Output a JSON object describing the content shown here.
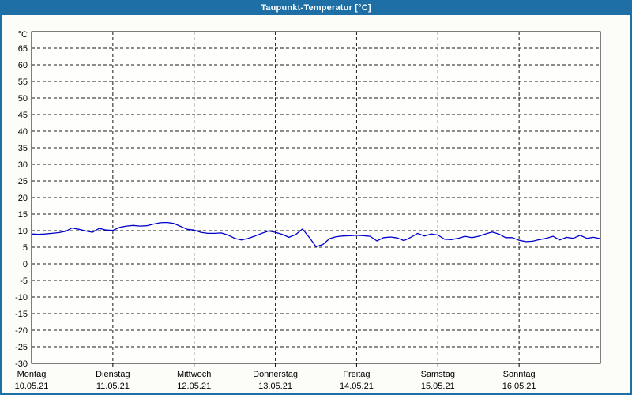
{
  "window": {
    "title": "Taupunkt-Temperatur [°C]"
  },
  "colors": {
    "frame": "#1d6fa5",
    "title_text": "#ffffff",
    "page_bg": "#fcfcf9",
    "plot_bg": "#fefefc",
    "grid": "#1a1a1a",
    "axis": "#000000",
    "label_text": "#000000",
    "line": "#0000cc"
  },
  "chart_data": {
    "type": "line",
    "title": "Taupunkt-Temperatur [°C]",
    "y_unit": "°C",
    "ylim": [
      -30,
      70
    ],
    "y_tick_step": 5,
    "y_labeled_range": [
      -30,
      65
    ],
    "grid": "dashed",
    "legend_position": "none",
    "x_axis_days": [
      {
        "weekday": "Montag",
        "date": "10.05.21"
      },
      {
        "weekday": "Dienstag",
        "date": "11.05.21"
      },
      {
        "weekday": "Mittwoch",
        "date": "12.05.21"
      },
      {
        "weekday": "Donnerstag",
        "date": "13.05.21"
      },
      {
        "weekday": "Freitag",
        "date": "14.05.21"
      },
      {
        "weekday": "Samstag",
        "date": "15.05.21"
      },
      {
        "weekday": "Sonntag",
        "date": "16.05.21"
      }
    ],
    "sample_interval_hours": 2,
    "series": [
      {
        "name": "Taupunkt-Temperatur",
        "unit": "°C",
        "values": [
          9.0,
          8.9,
          9.0,
          9.2,
          9.4,
          9.8,
          10.8,
          10.4,
          9.9,
          9.5,
          10.7,
          10.2,
          10.1,
          11.0,
          11.4,
          11.6,
          11.4,
          11.5,
          12.0,
          12.4,
          12.5,
          12.2,
          11.3,
          10.4,
          10.2,
          9.5,
          9.2,
          9.2,
          9.3,
          8.7,
          7.7,
          7.2,
          7.7,
          8.4,
          9.2,
          9.9,
          9.5,
          8.9,
          8.0,
          8.8,
          10.5,
          8.0,
          5.2,
          5.8,
          7.6,
          8.2,
          8.4,
          8.5,
          8.6,
          8.5,
          8.3,
          6.9,
          7.9,
          8.1,
          7.8,
          7.0,
          8.0,
          9.2,
          8.4,
          9.0,
          8.7,
          7.4,
          7.3,
          7.7,
          8.3,
          7.9,
          8.3,
          9.0,
          9.6,
          9.0,
          7.9,
          7.9,
          7.1,
          6.7,
          6.8,
          7.3,
          7.7,
          8.3,
          7.2,
          8.0,
          7.7,
          8.6,
          7.7,
          8.0,
          7.6
        ]
      }
    ]
  }
}
